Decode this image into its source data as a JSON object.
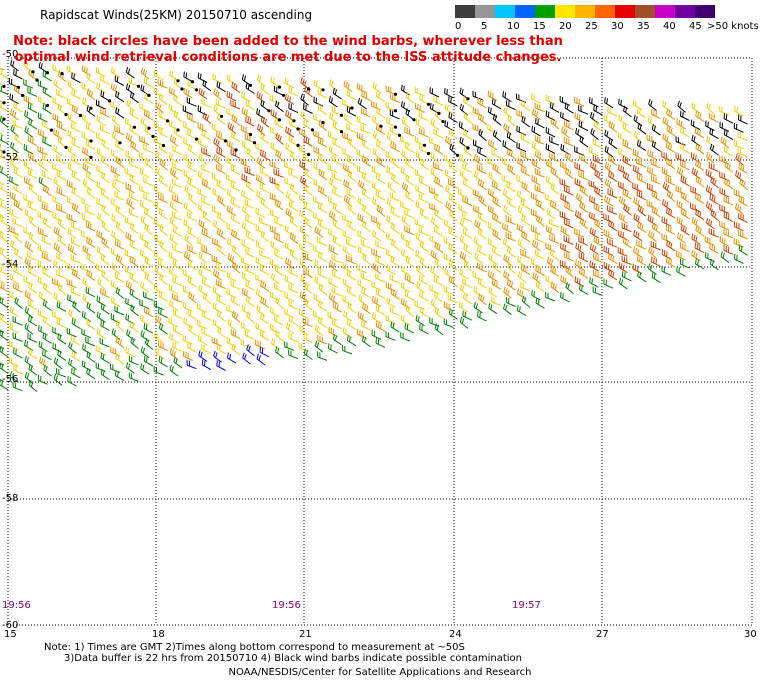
{
  "title": "Rapidscat Winds(25KM) 20150710 ascending",
  "note": "Note: black circles have been added to the wind barbs, wherever less than optimal wind retrieval conditions are met due to the ISS attitude changes.",
  "scale": {
    "labels": [
      "0",
      "5",
      "10",
      "15",
      "20",
      "25",
      "30",
      "35",
      "40",
      "45",
      ">50 knots"
    ],
    "colors": [
      "#3c3c3c",
      "#969696",
      "#00c8ff",
      "#0064ff",
      "#00a000",
      "#ffe600",
      "#ffb400",
      "#ff6400",
      "#e60000",
      "#a05028",
      "#c800c8",
      "#7000a0",
      "#400070"
    ]
  },
  "axes": {
    "x_ticks": [
      "15",
      "18",
      "21",
      "24",
      "27",
      "30"
    ],
    "y_ticks": [
      "-50",
      "-52",
      "-54",
      "-56",
      "-58",
      "-60"
    ]
  },
  "times": [
    "19:56",
    "19:56",
    "19:57"
  ],
  "footer": {
    "line1": "Note: 1) Times are GMT 2)Times along bottom correspond to measurement at ~50S",
    "line2": "3)Data buffer is 22 hrs from 20150710 4) Black wind barbs indicate possible contamination",
    "line3": "NOAA/NESDIS/Center for Satellite Applications and Research"
  },
  "barb_colors": {
    "black": "#000000",
    "yellow": "#f0d000",
    "orange": "#e89000",
    "red": "#d04000",
    "green": "#008000",
    "blue": "#0000ff"
  }
}
